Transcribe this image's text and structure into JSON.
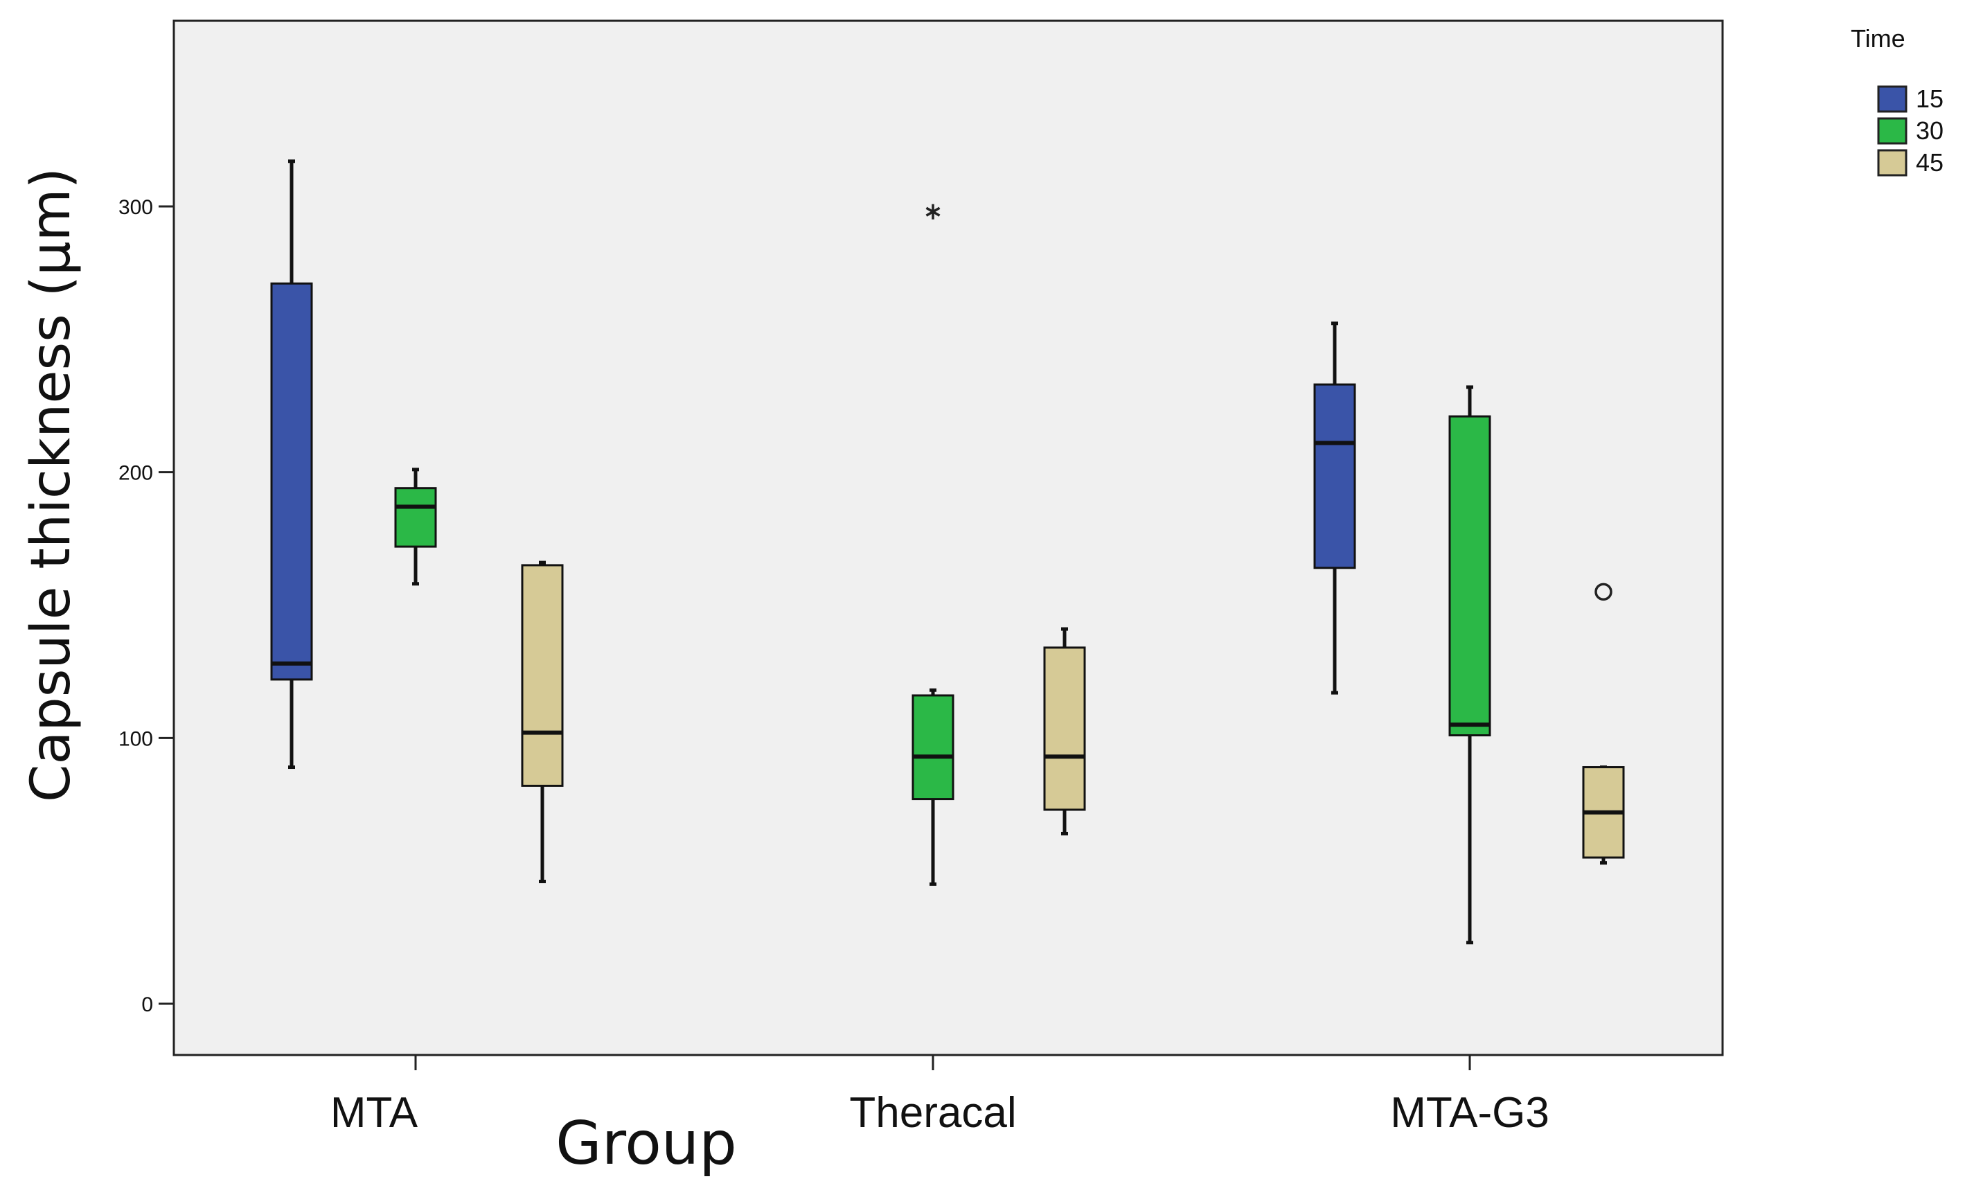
{
  "chart_data": {
    "type": "boxplot",
    "title": "",
    "xlabel": "Group",
    "ylabel": "Capsule thickness (µm)",
    "ylim": [
      -20,
      360
    ],
    "yticks": [
      0,
      100,
      200,
      300
    ],
    "grid": false,
    "categories": [
      "MTA",
      "Theracal",
      "MTA-G3"
    ],
    "legend": {
      "title": "Time",
      "placement": "top-right",
      "entries": [
        {
          "name": "15",
          "color": "#3a54a8"
        },
        {
          "name": "30",
          "color": "#2bb847"
        },
        {
          "name": "45",
          "color": "#d6ca96"
        }
      ]
    },
    "series": [
      {
        "name": "15",
        "color": "#3a54a8",
        "boxes": [
          {
            "group": "MTA",
            "whisker_low": 89,
            "q1": 122,
            "median": 128,
            "q3": 271,
            "whisker_high": 317,
            "outliers": [],
            "extremes": []
          },
          null,
          {
            "group": "MTA-G3",
            "whisker_low": 117,
            "q1": 164,
            "median": 211,
            "q3": 233,
            "whisker_high": 256,
            "outliers": [],
            "extremes": []
          }
        ]
      },
      {
        "name": "30",
        "color": "#2bb847",
        "boxes": [
          {
            "group": "MTA",
            "whisker_low": 158,
            "q1": 172,
            "median": 187,
            "q3": 194,
            "whisker_high": 201,
            "outliers": [],
            "extremes": []
          },
          {
            "group": "Theracal",
            "whisker_low": 45,
            "q1": 77,
            "median": 93,
            "q3": 116,
            "whisker_high": 118,
            "outliers": [],
            "extremes": [
              298
            ]
          },
          {
            "group": "MTA-G3",
            "whisker_low": 23,
            "q1": 101,
            "median": 105,
            "q3": 221,
            "whisker_high": 232,
            "outliers": [],
            "extremes": []
          }
        ]
      },
      {
        "name": "45",
        "color": "#d6ca96",
        "boxes": [
          {
            "group": "MTA",
            "whisker_low": 46,
            "q1": 82,
            "median": 102,
            "q3": 165,
            "whisker_high": 166,
            "outliers": [],
            "extremes": []
          },
          {
            "group": "Theracal",
            "whisker_low": 64,
            "q1": 73,
            "median": 93,
            "q3": 134,
            "whisker_high": 141,
            "outliers": [],
            "extremes": []
          },
          {
            "group": "MTA-G3",
            "whisker_low": 53,
            "q1": 55,
            "median": 72,
            "q3": 89,
            "whisker_high": 89,
            "outliers": [
              155
            ],
            "extremes": []
          }
        ]
      }
    ]
  }
}
